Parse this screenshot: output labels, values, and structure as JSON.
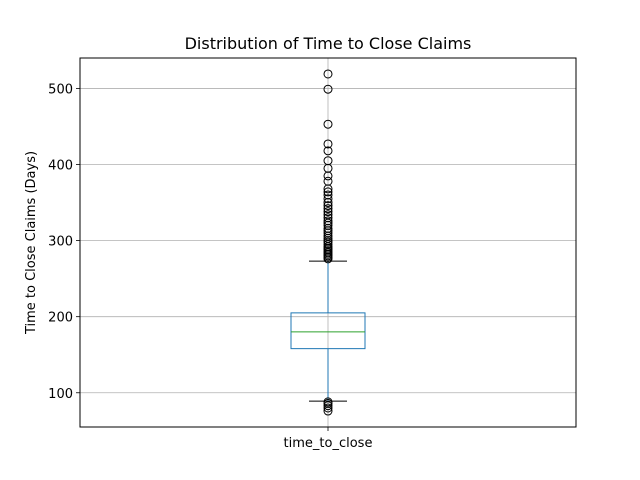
{
  "chart_data": {
    "type": "box",
    "title": "Distribution of Time to Close Claims",
    "xlabel": "",
    "ylabel": "Time to Close Claims (Days)",
    "categories": [
      "time_to_close"
    ],
    "ylim": [
      55,
      540
    ],
    "yticks": [
      100,
      200,
      300,
      400,
      500
    ],
    "grid": true,
    "box": {
      "whisker_low": 89,
      "q1": 158,
      "median": 180,
      "q3": 205,
      "whisker_high": 273,
      "outliers": [
        76,
        80,
        83,
        86,
        88,
        276,
        278,
        280,
        282,
        284,
        286,
        288,
        290,
        292,
        295,
        298,
        300,
        303,
        306,
        310,
        313,
        316,
        320,
        323,
        326,
        330,
        334,
        338,
        342,
        346,
        350,
        355,
        360,
        364,
        368,
        378,
        385,
        395,
        405,
        418,
        427,
        453,
        499,
        519
      ]
    },
    "colors": {
      "box": "#1f77b4",
      "median": "#2ca02c",
      "grid": "#b0b0b0"
    }
  }
}
